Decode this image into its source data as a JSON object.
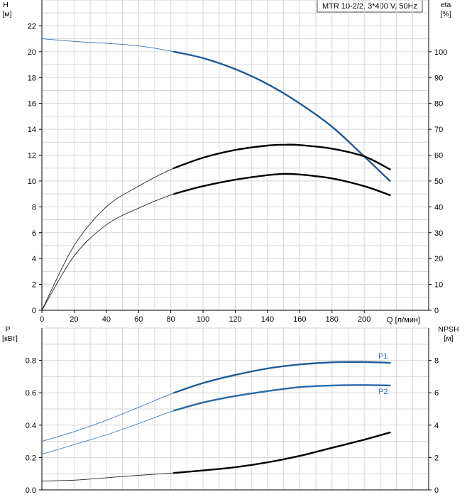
{
  "chart_data": [
    {
      "type": "line",
      "title": "MTR 10-2/2, 3*400 V, 50Hz",
      "ylabel_left": "H",
      "ylabel_left_unit": "[м]",
      "ylabel_right": "eta",
      "ylabel_right_unit": "[%]",
      "xlabel": "Q [л/мин]",
      "xlim": [
        0,
        240
      ],
      "ylim_left": [
        0,
        24
      ],
      "ylim_right": [
        0,
        120
      ],
      "x_ticks": [
        0,
        20,
        40,
        60,
        80,
        100,
        120,
        140,
        160,
        180,
        200
      ],
      "y_left_ticks": [
        0,
        2,
        4,
        6,
        8,
        10,
        12,
        14,
        16,
        18,
        20,
        22
      ],
      "y_right_ticks": [
        0,
        10,
        20,
        30,
        40,
        50,
        60,
        70,
        80,
        90,
        100
      ],
      "grid": true,
      "series": [
        {
          "axis": "left",
          "color": "#1e5a96",
          "operating_range": [
            82,
            216
          ],
          "x": [
            0,
            20,
            40,
            60,
            82,
            100,
            120,
            140,
            160,
            180,
            200,
            216
          ],
          "values": [
            21.0,
            20.8,
            20.65,
            20.45,
            20.0,
            19.5,
            18.65,
            17.5,
            16.0,
            14.2,
            11.9,
            10.0
          ]
        },
        {
          "axis": "right",
          "color": "#000000",
          "operating_range": [
            82,
            216
          ],
          "x": [
            0,
            20,
            40,
            60,
            82,
            100,
            120,
            140,
            150,
            160,
            180,
            200,
            216
          ],
          "values": [
            0,
            25,
            40,
            48,
            55,
            59,
            62,
            63.7,
            64,
            63.9,
            62.5,
            59.5,
            54.5
          ]
        },
        {
          "axis": "left",
          "color": "#000000",
          "operating_range": [
            82,
            216
          ],
          "x": [
            0,
            20,
            40,
            60,
            82,
            100,
            120,
            140,
            150,
            160,
            180,
            200,
            216
          ],
          "values": [
            0,
            4.2,
            6.6,
            7.9,
            9.0,
            9.6,
            10.1,
            10.45,
            10.55,
            10.5,
            10.2,
            9.6,
            8.9
          ]
        }
      ]
    },
    {
      "type": "line",
      "ylabel_left": "P",
      "ylabel_left_unit": "[кВт]",
      "ylabel_right": "NPSH",
      "ylabel_right_unit": "[м]",
      "xlim": [
        0,
        240
      ],
      "ylim_left": [
        0,
        1.0
      ],
      "ylim_right": [
        0,
        10
      ],
      "y_left_ticks": [
        0.0,
        0.2,
        0.4,
        0.6,
        0.8
      ],
      "y_left_tick_labels": [
        "0.0",
        "0.2",
        "0.4",
        "0.6",
        "0.8"
      ],
      "y_right_ticks": [
        0,
        2,
        4,
        6,
        8
      ],
      "grid": true,
      "series": [
        {
          "name": "P1",
          "axis": "left",
          "color": "#1e5a96",
          "operating_range": [
            82,
            216
          ],
          "x": [
            0,
            20,
            40,
            60,
            82,
            100,
            120,
            140,
            160,
            180,
            200,
            216
          ],
          "values": [
            0.3,
            0.36,
            0.43,
            0.51,
            0.6,
            0.66,
            0.71,
            0.75,
            0.775,
            0.788,
            0.79,
            0.785
          ]
        },
        {
          "name": "P2",
          "axis": "left",
          "color": "#2a6aa8",
          "operating_range": [
            82,
            216
          ],
          "x": [
            0,
            20,
            40,
            60,
            82,
            100,
            120,
            140,
            160,
            180,
            200,
            216
          ],
          "values": [
            0.22,
            0.28,
            0.34,
            0.41,
            0.49,
            0.54,
            0.58,
            0.61,
            0.635,
            0.645,
            0.648,
            0.645
          ]
        },
        {
          "axis": "right",
          "color": "#000000",
          "operating_range": [
            82,
            216
          ],
          "x": [
            0,
            20,
            40,
            60,
            82,
            100,
            120,
            140,
            160,
            180,
            200,
            216
          ],
          "values": [
            0.55,
            0.6,
            0.75,
            0.9,
            1.05,
            1.2,
            1.4,
            1.7,
            2.1,
            2.6,
            3.1,
            3.55
          ]
        }
      ]
    }
  ]
}
